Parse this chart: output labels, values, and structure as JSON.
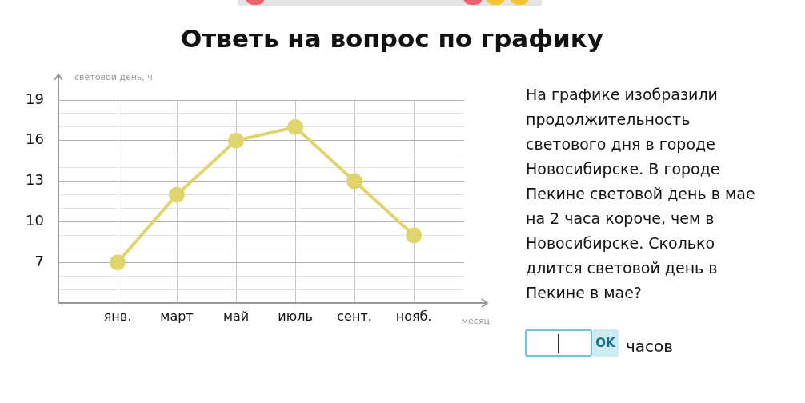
{
  "chart_data": {
    "type": "line",
    "title": "Ответь на вопрос по графику",
    "xlabel": "месяц",
    "ylabel": "световой день, ч",
    "categories": [
      "янв.",
      "март",
      "май",
      "июль",
      "сент.",
      "нояб."
    ],
    "series": [
      {
        "color": "#e0d46c",
        "values": [
          7,
          12,
          16,
          17,
          13,
          9
        ]
      }
    ],
    "ylim": [
      4,
      19
    ],
    "yticks": [
      {
        "value": 4,
        "label": null
      },
      {
        "value": 5,
        "label": null
      },
      {
        "value": 6,
        "label": null
      },
      7,
      {
        "value": 8,
        "label": null
      },
      {
        "value": 9,
        "label": null
      },
      10,
      {
        "value": 11,
        "label": null
      },
      {
        "value": 12,
        "label": null
      },
      13,
      {
        "value": 14,
        "label": null
      },
      {
        "value": 15,
        "label": null
      },
      16,
      {
        "value": 17,
        "label": null
      },
      {
        "value": 18,
        "label": null
      },
      19
    ],
    "grid": true,
    "legend": false,
    "marker": "circle",
    "line_style": "solid",
    "annotations": [
      "На графике изобразили продолжительность светового дня в городе Новосибирске. В городе Пекине световой день в мае на 2 часа короче, чем в Новосибирске. Сколько длится световой день в Пекине в мае?",
      "OK",
      "часов"
    ]
  }
}
